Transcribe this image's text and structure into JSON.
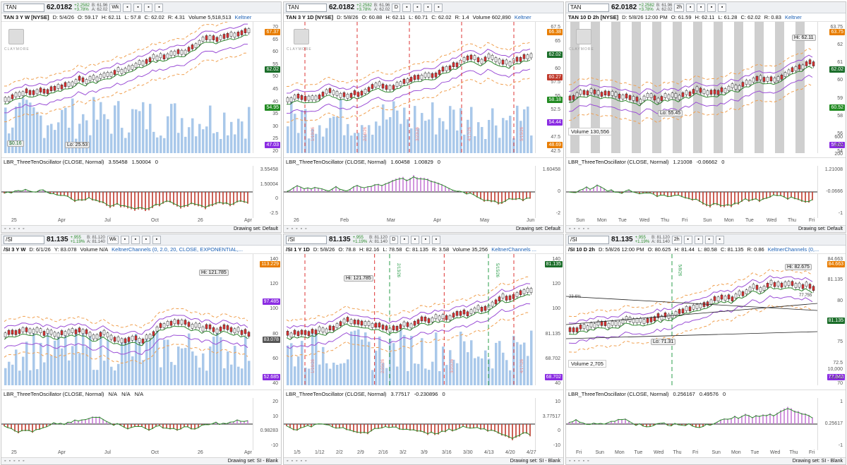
{
  "panels": [
    {
      "symbol": "TAN",
      "last": "62.0182",
      "chg": "+2.2582",
      "pct": "+3.78%",
      "bid": "B: 61.96",
      "ask": "A: 62.02",
      "agg": "Wk",
      "title": "TAN 3 Y W [NYSE]",
      "stats": [
        "D: 5/4/26",
        "O: 59.17",
        "H: 62.11",
        "L: 57.8",
        "C: 62.02",
        "R: 4.31"
      ],
      "volume": "Volume 5,518,513",
      "study": "Keltner",
      "ticks": [
        "70",
        "65",
        "60",
        "55",
        "50",
        "45",
        "40",
        "35",
        "30",
        "25",
        "20"
      ],
      "tags": [
        {
          "t": "67.37",
          "c": "#e87d00"
        },
        {
          "t": "62.02",
          "c": "#1b6e2a"
        },
        {
          "t": "54.95",
          "c": "#228b22"
        },
        {
          "t": "47.03",
          "c": "#8a2be2"
        }
      ],
      "lo": "Lo: 25.53",
      "dividend": "$0.16",
      "osc": "LBR_ThreeTenOscillator (CLOSE, Normal)",
      "oscv": [
        "3.55458",
        "1.50004",
        "0"
      ],
      "oticks": [
        "3.55458",
        "1.50004",
        "0",
        "-2.5"
      ],
      "xlabels": [
        "25",
        "Apr",
        "Jul",
        "Oct",
        "26",
        "Apr"
      ],
      "drawing": "Drawing set: Default"
    },
    {
      "symbol": "TAN",
      "last": "62.0182",
      "chg": "+2.2582",
      "pct": "+3.78%",
      "bid": "B: 61.96",
      "ask": "A: 62.02",
      "agg": "D",
      "title": "TAN 3 Y 1D [NYSE]",
      "stats": [
        "D: 5/8/26",
        "O: 60.88",
        "H: 62.11",
        "L: 60.71",
        "C: 62.02",
        "R: 1.4"
      ],
      "volume": "Volume 602,890",
      "study": "Keltner",
      "ticks": [
        "67.5",
        "65",
        "62.5",
        "60",
        "57.5",
        "55",
        "52.5",
        "50",
        "47.5",
        "42.5"
      ],
      "tags": [
        {
          "t": "66.38",
          "c": "#e87d00"
        },
        {
          "t": "62.02",
          "c": "#1b6e2a"
        },
        {
          "t": "60.27",
          "c": "#c0392b"
        },
        {
          "t": "58.18",
          "c": "#228b22"
        },
        {
          "t": "54.44",
          "c": "#8a2be2"
        },
        {
          "t": "48.69",
          "c": "#e87d00"
        }
      ],
      "osc": "LBR_ThreeTenOscillator (CLOSE, Normal)",
      "oscv": [
        "1.60458",
        "1.00829",
        "0"
      ],
      "oticks": [
        "1.60458",
        "0",
        "-2"
      ],
      "xlabels": [
        "26",
        "Feb",
        "Mar",
        "Apr",
        "May",
        "Jun"
      ],
      "drawing": "Drawing set: Default",
      "dates": [
        "1/19/26",
        "2/16/26",
        "3/23/26",
        "4/17/26",
        "5/15/26"
      ]
    },
    {
      "symbol": "TAN",
      "last": "62.0182",
      "chg": "+2.2582",
      "pct": "+3.78%",
      "bid": "B: 61.96",
      "ask": "A: 62.02",
      "agg": "2h",
      "title": "TAN 10 D 2h [NYSE]",
      "stats": [
        "D: 5/8/26 12:00 PM",
        "O: 61.59",
        "H: 62.11",
        "L: 61.28",
        "C: 62.02",
        "R: 0.83"
      ],
      "volume": "",
      "study": "Keltner",
      "ticks": [
        "63.75",
        "62",
        "61",
        "60",
        "59",
        "58",
        "56",
        "54"
      ],
      "tags": [
        {
          "t": "63.75",
          "c": "#e87d00"
        },
        {
          "t": "62.02",
          "c": "#1b6e2a"
        },
        {
          "t": "60.52",
          "c": "#228b22"
        },
        {
          "t": "59.01",
          "c": "#8a2be2"
        }
      ],
      "lo": "Lo: 55.45",
      "hi": "Hi: 62.11",
      "volrow": "Volume  130,556",
      "vticks": [
        "600",
        "400",
        "200"
      ],
      "vunit": "thousands",
      "osc": "LBR_ThreeTenOscillator (CLOSE, Normal)",
      "oscv": [
        "1.21008",
        "-0.06662",
        "0"
      ],
      "oticks": [
        "1.21008",
        "-0.0666",
        "-1"
      ],
      "xlabels": [
        "Sun",
        "Mon",
        "Tue",
        "Wed",
        "Thu",
        "Fri",
        "Sun",
        "Mon",
        "Tue",
        "Wed",
        "Thu",
        "Fri"
      ],
      "drawing": "Drawing set: Default"
    },
    {
      "symbol": "/SI",
      "last": "81.135",
      "chg": "+.955",
      "pct": "+1.19%",
      "bid": "B: 81.120",
      "ask": "A: 81.140",
      "agg": "Wk",
      "title": "/SI 3 Y W",
      "stats": [
        "D: 6/1/26",
        "Y: 83.078"
      ],
      "volume": "Volume  N/A",
      "study": "KeltnerChannels (0, 2.0, 20, CLOSE, EXPONENTIAL,...",
      "ticks": [
        "140",
        "120",
        "100",
        "80",
        "60",
        "40"
      ],
      "tags": [
        {
          "t": "113.229",
          "c": "#e87d00"
        },
        {
          "t": "97.485",
          "c": "#8a2be2"
        },
        {
          "t": "83.078",
          "c": "#555555"
        },
        {
          "t": "52.685",
          "c": "#8a2be2"
        }
      ],
      "hi": "Hi: 121.785",
      "osc": "LBR_ThreeTenOscillator (CLOSE, Normal)",
      "oscv": [
        "N/A",
        "N/A",
        "N/A"
      ],
      "oticks": [
        "20",
        "10",
        "0.98283",
        "-10"
      ],
      "xlabels": [
        "25",
        "Apr",
        "Jul",
        "Oct",
        "26",
        "Apr"
      ],
      "drawing": "Drawing set: SI - Blank"
    },
    {
      "symbol": "/SI",
      "last": "81.135",
      "chg": "+.955",
      "pct": "+1.19%",
      "bid": "B: 81.120",
      "ask": "A: 81.140",
      "agg": "D",
      "title": "/SI 1 Y 1D",
      "stats": [
        "D: 5/8/26",
        "O: 78.8",
        "H: 82.16",
        "L: 78.58",
        "C: 81.135",
        "R: 3.58"
      ],
      "volume": "Volume 35,256",
      "study": "KeltnerChannels ...",
      "ticks": [
        "140",
        "120",
        "100",
        "81.135",
        "68.702",
        "40"
      ],
      "tags": [
        {
          "t": "81.135",
          "c": "#1b6e2a"
        },
        {
          "t": "68.702",
          "c": "#8a2be2"
        }
      ],
      "hi": "Hi: 121.785",
      "osc": "LBR_ThreeTenOscillator (CLOSE, Normal)",
      "oscv": [
        "3.77517",
        "-0.230896",
        "0"
      ],
      "oticks": [
        "10",
        "3.77517",
        "0",
        "-10"
      ],
      "xlabels": [
        "1/5",
        "1/12",
        "2/2",
        "2/9",
        "2/16",
        "3/2",
        "3/9",
        "3/16",
        "3/30",
        "4/13",
        "4/20",
        "4/27"
      ],
      "drawing": "Drawing set: SI - Blank",
      "dates": [
        "1/16/26",
        "2/20/26",
        "3/20/26",
        "4/17/26"
      ],
      "gdates": [
        "2/13/26",
        "5/15/26"
      ]
    },
    {
      "symbol": "/SI",
      "last": "81.135",
      "chg": "+.955",
      "pct": "+1.19%",
      "bid": "B: 81.120",
      "ask": "A: 81.140",
      "agg": "2h",
      "title": "/SI 10 D 2h",
      "stats": [
        "D: 5/8/26 12:00 PM",
        "O: 80.625",
        "H: 81.44",
        "L: 80.58",
        "C: 81.135",
        "R: 0.86"
      ],
      "volume": "",
      "study": "KeltnerChannels (0,...",
      "ticks": [
        "84.663",
        "81.135",
        "80",
        "77.943",
        "75",
        "72.5",
        "70"
      ],
      "tags": [
        {
          "t": "84.663",
          "c": "#e87d00"
        },
        {
          "t": "81.135",
          "c": "#1b6e2a"
        },
        {
          "t": "77.943",
          "c": "#8a2be2"
        }
      ],
      "hi": "Hi: 82.675",
      "lo": "Lo: 71.31",
      "fib1": "23.6%",
      "fib2": "77.755",
      "volrow": "Volume  2,705",
      "vticks": [
        "10,000",
        "5,000"
      ],
      "osc": "LBR_ThreeTenOscillator (CLOSE, Normal)",
      "oscv": [
        "0.256167",
        "0.49576",
        "0"
      ],
      "oticks": [
        "1",
        "0.25617",
        "-1"
      ],
      "xlabels": [
        "Fri",
        "Sun",
        "Mon",
        "Tue",
        "Wed",
        "Thu",
        "Fri",
        "Sun",
        "Mon",
        "Tue",
        "Wed",
        "Thu",
        "Fri"
      ],
      "drawing": "Drawing set: SI - Blank",
      "gdates": [
        "5/8/26"
      ]
    }
  ]
}
